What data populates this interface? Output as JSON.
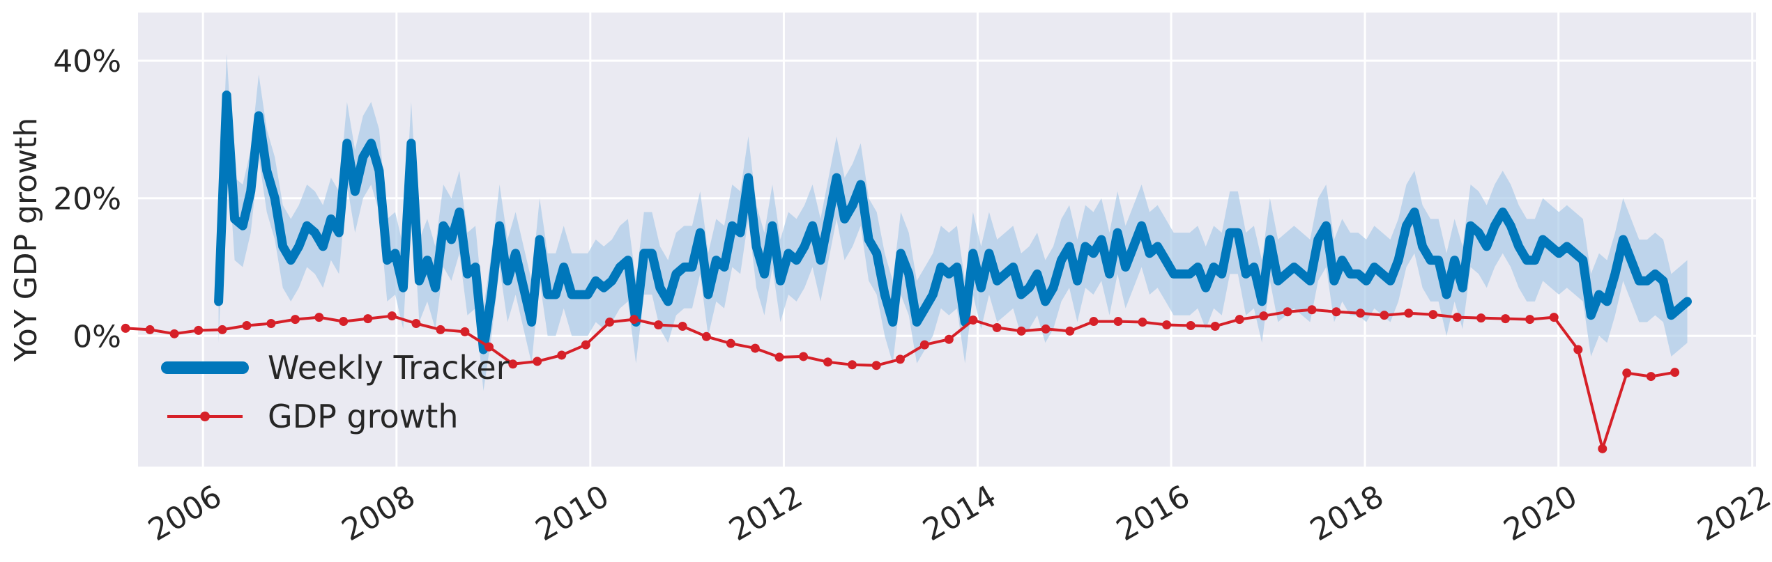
{
  "chart_data": {
    "type": "line",
    "ylabel": "YoY GDP growth",
    "xlim": [
      "2005-05-01",
      "2022-01-15"
    ],
    "ylim": [
      -19,
      47
    ],
    "grid": true,
    "legend_placement": "lower-left",
    "x_ticks": [
      {
        "date": "2006-01-01",
        "label": "2006"
      },
      {
        "date": "2008-01-01",
        "label": "2008"
      },
      {
        "date": "2010-01-01",
        "label": "2010"
      },
      {
        "date": "2012-01-01",
        "label": "2012"
      },
      {
        "date": "2014-01-01",
        "label": "2014"
      },
      {
        "date": "2016-01-01",
        "label": "2016"
      },
      {
        "date": "2018-01-01",
        "label": "2018"
      },
      {
        "date": "2020-01-01",
        "label": "2020"
      },
      {
        "date": "2022-01-01",
        "label": "2022"
      }
    ],
    "y_ticks": [
      {
        "value": 0,
        "label": "0%"
      },
      {
        "value": 20,
        "label": "20%"
      },
      {
        "value": 40,
        "label": "40%"
      }
    ],
    "colors": {
      "plot_background": "#eaeaf2",
      "grid": "#ffffff",
      "tracker": "#0077bb",
      "band": "#a6c8e6",
      "gdp": "#d62028"
    },
    "series": [
      {
        "name": "Weekly Tracker",
        "band_width": 6,
        "x_start": "2006-03-01",
        "x_end": "2021-05-01",
        "values": [
          5,
          35,
          17,
          16,
          21,
          32,
          24,
          20,
          13,
          11,
          13,
          16,
          15,
          13,
          17,
          15,
          28,
          21,
          26,
          28,
          24,
          11,
          12,
          7,
          28,
          8,
          11,
          7,
          16,
          14,
          18,
          9,
          10,
          -2,
          6,
          16,
          8,
          12,
          7,
          2,
          14,
          6,
          6,
          10,
          6,
          6,
          6,
          8,
          7,
          8,
          10,
          11,
          2,
          12,
          12,
          7,
          5,
          9,
          10,
          10,
          15,
          6,
          11,
          10,
          16,
          15,
          23,
          13,
          9,
          16,
          8,
          12,
          11,
          13,
          16,
          11,
          17,
          23,
          17,
          19,
          22,
          14,
          12,
          6,
          2,
          12,
          9,
          2,
          4,
          6,
          10,
          9,
          10,
          2,
          12,
          7,
          12,
          8,
          9,
          10,
          6,
          7,
          9,
          5,
          7,
          11,
          13,
          8,
          13,
          12,
          14,
          9,
          15,
          10,
          13,
          16,
          12,
          13,
          11,
          9,
          9,
          9,
          10,
          7,
          10,
          9,
          15,
          15,
          9,
          10,
          5,
          14,
          8,
          9,
          10,
          9,
          8,
          14,
          16,
          8,
          11,
          9,
          9,
          8,
          10,
          9,
          8,
          11,
          16,
          18,
          13,
          11,
          11,
          6,
          11,
          7,
          16,
          15,
          13,
          16,
          18,
          16,
          13,
          11,
          11,
          14,
          13,
          12,
          13,
          12,
          11,
          3,
          6,
          5,
          9,
          14,
          11,
          8,
          8,
          9,
          8,
          3,
          4,
          5
        ]
      },
      {
        "name": "GDP growth",
        "x": [
          "2005-03-15",
          "2005-06-15",
          "2005-09-15",
          "2005-12-15",
          "2006-03-15",
          "2006-06-15",
          "2006-09-15",
          "2006-12-15",
          "2007-03-15",
          "2007-06-15",
          "2007-09-15",
          "2007-12-15",
          "2008-03-15",
          "2008-06-15",
          "2008-09-15",
          "2008-12-15",
          "2009-03-15",
          "2009-06-15",
          "2009-09-15",
          "2009-12-15",
          "2010-03-15",
          "2010-06-15",
          "2010-09-15",
          "2010-12-15",
          "2011-03-15",
          "2011-06-15",
          "2011-09-15",
          "2011-12-15",
          "2012-03-15",
          "2012-06-15",
          "2012-09-15",
          "2012-12-15",
          "2013-03-15",
          "2013-06-15",
          "2013-09-15",
          "2013-12-15",
          "2014-03-15",
          "2014-06-15",
          "2014-09-15",
          "2014-12-15",
          "2015-03-15",
          "2015-06-15",
          "2015-09-15",
          "2015-12-15",
          "2016-03-15",
          "2016-06-15",
          "2016-09-15",
          "2016-12-15",
          "2017-03-15",
          "2017-06-15",
          "2017-09-15",
          "2017-12-15",
          "2018-03-15",
          "2018-06-15",
          "2018-09-15",
          "2018-12-15",
          "2019-03-15",
          "2019-06-15",
          "2019-09-15",
          "2019-12-15",
          "2020-03-15",
          "2020-06-15",
          "2020-09-15",
          "2020-12-15",
          "2021-03-15"
        ],
        "values": [
          1.1,
          0.9,
          0.3,
          0.8,
          0.9,
          1.5,
          1.8,
          2.4,
          2.7,
          2.1,
          2.5,
          2.9,
          1.8,
          0.9,
          0.6,
          -1.6,
          -4.1,
          -3.7,
          -2.8,
          -1.3,
          2.0,
          2.4,
          1.6,
          1.4,
          -0.1,
          -1.1,
          -1.8,
          -3.1,
          -3.0,
          -3.8,
          -4.2,
          -4.3,
          -3.4,
          -1.3,
          -0.5,
          2.3,
          1.2,
          0.7,
          1.0,
          0.7,
          2.1,
          2.1,
          2.0,
          1.6,
          1.5,
          1.4,
          2.4,
          2.9,
          3.5,
          3.8,
          3.5,
          3.3,
          3.0,
          3.3,
          3.1,
          2.7,
          2.6,
          2.5,
          2.4,
          2.7,
          -2.0,
          -16.4,
          -5.4,
          -5.9,
          -5.3
        ]
      }
    ]
  }
}
